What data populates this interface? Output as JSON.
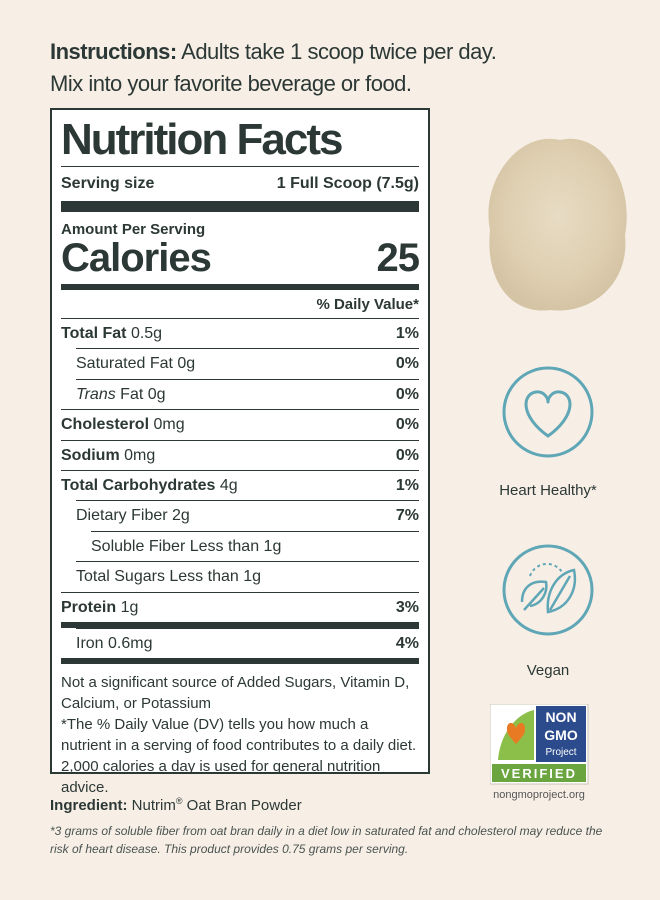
{
  "instructions": {
    "label": "Instructions:",
    "text": "Adults take 1 scoop twice per day.",
    "line2": "Mix into your favorite beverage or food."
  },
  "label": {
    "title": "Nutrition Facts",
    "serving_size_label": "Serving size",
    "serving_size": "1 Full Scoop (7.5g)",
    "amount_per_serving": "Amount Per Serving",
    "calories_label": "Calories",
    "calories": "25",
    "daily_value_header": "% Daily Value*",
    "rows": [
      {
        "name": "Total Fat",
        "amount": "0.5g",
        "dv": "1%"
      },
      {
        "name": "Saturated Fat",
        "amount": "0g",
        "dv": "0%"
      },
      {
        "name_italic": "Trans",
        "name": "Fat",
        "amount": "0g",
        "dv": "0%"
      },
      {
        "name": "Cholesterol",
        "amount": "0mg",
        "dv": "0%"
      },
      {
        "name": "Sodium",
        "amount": "0mg",
        "dv": "0%"
      },
      {
        "name": "Total Carbohydrates",
        "amount": "4g",
        "dv": "1%"
      },
      {
        "name": "Dietary Fiber",
        "amount": "2g",
        "dv": "7%"
      },
      {
        "name": "Soluble Fiber Less than 1g"
      },
      {
        "name": "Total Sugars Less than 1g"
      },
      {
        "name": "Protein",
        "amount": "1g",
        "dv": "3%"
      },
      {
        "name": "Iron",
        "amount": "0.6mg",
        "dv": "4%"
      }
    ],
    "notes": [
      "Not a significant source of Added Sugars, Vitamin D, Calcium, or Potassium",
      "*The % Daily Value (DV) tells you how much a nutrient in a serving of food contributes to a daily diet. 2,000 calories a day is used for general nutrition advice."
    ]
  },
  "badges": [
    {
      "label": "Heart Healthy*"
    },
    {
      "label": "Vegan"
    }
  ],
  "non_gmo": {
    "line1": "NON",
    "line2": "GMO",
    "line3": "Project",
    "verified": "VERIFIED",
    "url": "nongmoproject.org"
  },
  "ingredient": {
    "label": "Ingredient:",
    "brand": "Nutrim",
    "mark": "®",
    "text": "Oat Bran Powder"
  },
  "footnote": "*3 grams of soluble fiber from oat bran daily in a diet low in saturated fat and cholesterol may reduce the risk of heart disease. This product provides 0.75 grams per serving."
}
